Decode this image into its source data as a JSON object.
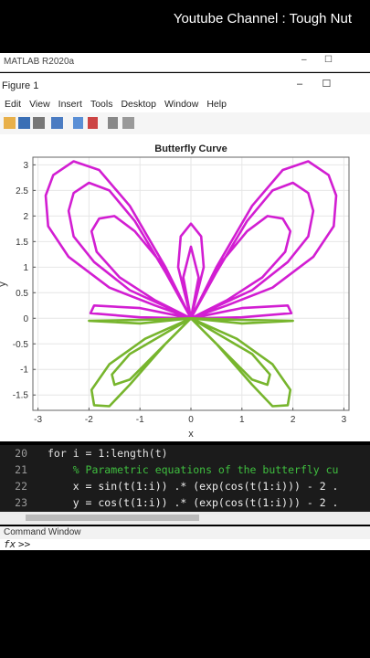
{
  "overlay_title": "Youtube Channel : Tough Nut",
  "app_title": "MATLAB R2020a",
  "figure_title": "Figure 1",
  "menu": [
    "Edit",
    "View",
    "Insert",
    "Tools",
    "Desktop",
    "Window",
    "Help"
  ],
  "editor": [
    {
      "num": "20",
      "code": "for i = 1:length(t)"
    },
    {
      "num": "21",
      "code": "    % Parametric equations of the butterfly cu"
    },
    {
      "num": "22",
      "code": "    x = sin(t(1:i)) .* (exp(cos(t(1:i))) - 2 ."
    },
    {
      "num": "23",
      "code": "    y = cos(t(1:i)) .* (exp(cos(t(1:i))) - 2 ."
    }
  ],
  "command_window": "Command Window",
  "prompt": ">>",
  "chart_data": {
    "type": "line",
    "title": "Butterfly Curve",
    "xlabel": "x",
    "ylabel": "y",
    "xlim": [
      -3.1,
      3.1
    ],
    "ylim": [
      -1.8,
      3.15
    ],
    "xticks": [
      -3,
      -2,
      -1,
      0,
      1,
      2,
      3
    ],
    "yticks": [
      -1.5,
      -1,
      -0.5,
      0,
      0.5,
      1,
      1.5,
      2,
      2.5,
      3
    ],
    "grid": true,
    "series": [
      {
        "color": "#d21ed2",
        "x": [
          0,
          -0.5,
          -1.2,
          -1.8,
          -2.3,
          -2.7,
          -2.85,
          -2.8,
          -2.4,
          -1.6,
          -0.7,
          0,
          null,
          0,
          0.5,
          1.2,
          1.8,
          2.3,
          2.7,
          2.85,
          2.8,
          2.4,
          1.6,
          0.7,
          0,
          null,
          0,
          -0.5,
          -1.1,
          -1.6,
          -2.0,
          -2.3,
          -2.4,
          -2.3,
          -1.9,
          -1.2,
          0,
          null,
          0,
          0.5,
          1.1,
          1.6,
          2.0,
          2.3,
          2.4,
          2.3,
          1.9,
          1.2,
          0,
          null,
          0,
          -0.6,
          -1.1,
          -1.5,
          -1.8,
          -1.95,
          -1.85,
          -1.4,
          -0.7,
          0,
          null,
          0,
          0.6,
          1.1,
          1.5,
          1.8,
          1.95,
          1.85,
          1.4,
          0.7,
          0,
          null,
          0,
          -0.25,
          -0.2,
          0,
          0.2,
          0.25,
          0,
          null,
          0,
          -0.15,
          0,
          0.15,
          0,
          null,
          0,
          -1,
          -1.9,
          -1.97,
          -1,
          0,
          null,
          0,
          1,
          1.9,
          1.97,
          1,
          0
        ],
        "values": [
          0,
          1.0,
          2.2,
          2.9,
          3.07,
          2.8,
          2.4,
          1.8,
          1.2,
          0.6,
          0.25,
          0,
          null,
          0,
          1.0,
          2.2,
          2.9,
          3.07,
          2.8,
          2.4,
          1.8,
          1.2,
          0.6,
          0.25,
          0,
          null,
          0,
          0.9,
          1.9,
          2.5,
          2.65,
          2.45,
          2.1,
          1.6,
          1.1,
          0.55,
          0,
          null,
          0,
          0.9,
          1.9,
          2.5,
          2.65,
          2.45,
          2.1,
          1.6,
          1.1,
          0.55,
          0,
          null,
          0,
          1.1,
          1.7,
          2.0,
          1.95,
          1.7,
          1.3,
          0.8,
          0.35,
          0,
          null,
          0,
          1.1,
          1.7,
          2.0,
          1.95,
          1.7,
          1.3,
          0.8,
          0.35,
          0,
          null,
          0,
          1.0,
          1.6,
          1.85,
          1.6,
          1.0,
          0,
          null,
          0,
          0.8,
          1.4,
          0.8,
          0,
          null,
          0,
          0.2,
          0.25,
          0.1,
          0.02,
          0,
          null,
          0,
          0.2,
          0.25,
          0.1,
          0.02,
          0
        ]
      },
      {
        "color": "#77b52d",
        "x": [
          0,
          -0.5,
          -1.2,
          -1.6,
          -1.9,
          -1.95,
          -1.6,
          -0.9,
          0,
          null,
          0,
          0.5,
          1.2,
          1.6,
          1.9,
          1.95,
          1.6,
          0.9,
          0,
          null,
          0,
          -0.7,
          -1.2,
          -1.5,
          -1.55,
          -1.2,
          0,
          null,
          0,
          0.7,
          1.2,
          1.5,
          1.55,
          1.2,
          0,
          null,
          0,
          -1,
          -2,
          -1,
          0,
          null,
          0,
          1,
          2,
          1,
          0
        ],
        "values": [
          0,
          -0.5,
          -1.3,
          -1.72,
          -1.7,
          -1.4,
          -0.9,
          -0.4,
          0,
          null,
          0,
          -0.5,
          -1.3,
          -1.72,
          -1.7,
          -1.4,
          -0.9,
          -0.4,
          0,
          null,
          0,
          -0.7,
          -1.2,
          -1.3,
          -1.1,
          -0.7,
          0,
          null,
          0,
          -0.7,
          -1.2,
          -1.3,
          -1.1,
          -0.7,
          0,
          null,
          0,
          -0.03,
          -0.05,
          -0.1,
          0,
          null,
          0,
          -0.03,
          -0.05,
          -0.1,
          0
        ]
      }
    ]
  }
}
